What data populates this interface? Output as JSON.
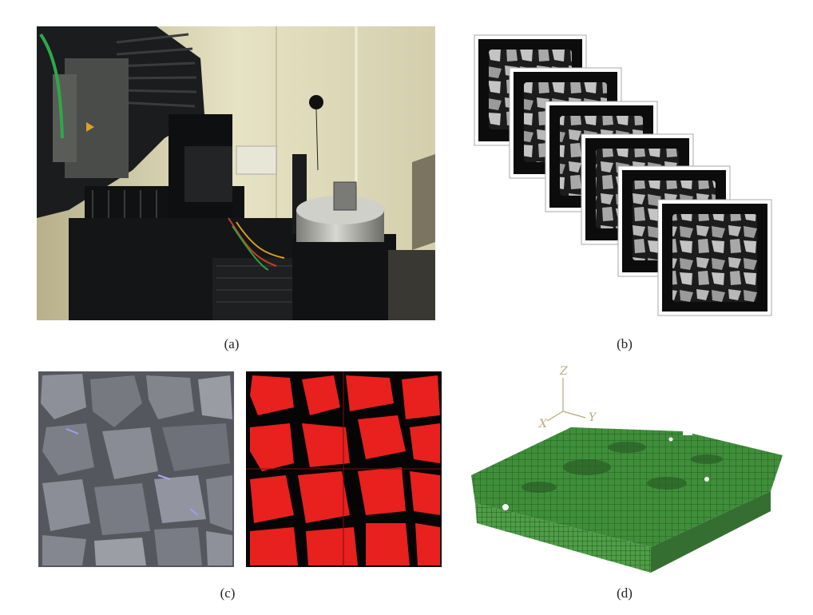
{
  "figure": {
    "panels": [
      {
        "id": "a",
        "caption": "(a)",
        "depicts": "photograph of X-ray CT scanner with specimen on rotating stage"
      },
      {
        "id": "b",
        "caption": "(b)",
        "depicts": "stack of six CT slice images of asphalt specimen"
      },
      {
        "id": "c",
        "caption": "(c)",
        "depicts": "grayscale CT slice and segmented red/black binary image"
      },
      {
        "id": "d",
        "caption": "(d)",
        "depicts": "green 3D finite element mesh of specimen"
      }
    ],
    "axes_labels": {
      "z": "Z",
      "x": "X",
      "y": "Y"
    },
    "colors": {
      "segment_aggregate": "#e8201e",
      "segment_void": "#050505",
      "mesh_green": "#3f8f3a",
      "axis_tan": "#b9a878"
    },
    "slice_count": 6
  }
}
